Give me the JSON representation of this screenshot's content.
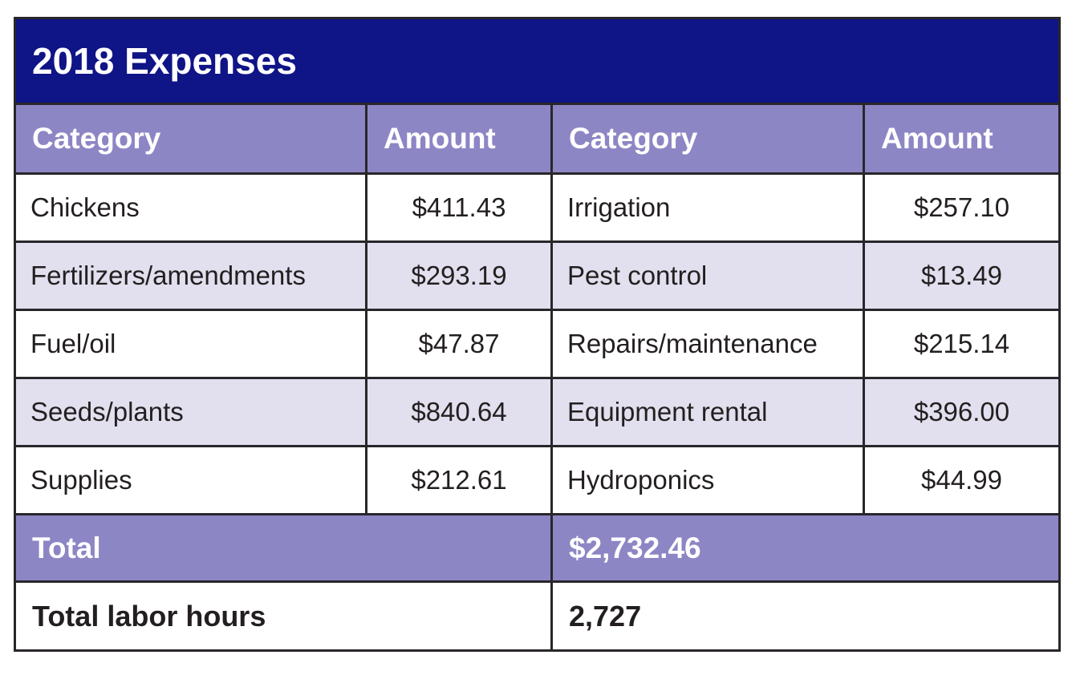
{
  "title": "2018 Expenses",
  "colors": {
    "navy": "#0f1487",
    "purple": "#8d86c5",
    "lavender": "#e2dfee",
    "border": "#29262a",
    "text": "#231f20",
    "white-text": "#ffffff"
  },
  "table": {
    "headers": [
      "Category",
      "Amount",
      "Category",
      "Amount"
    ],
    "rows": [
      {
        "cells": [
          "Chickens",
          "$411.43",
          "Irrigation",
          "$257.10"
        ]
      },
      {
        "cells": [
          "Fertilizers/amendments",
          "$293.19",
          "Pest control",
          "$13.49"
        ]
      },
      {
        "cells": [
          "Fuel/oil",
          "$47.87",
          "Repairs/maintenance",
          "$215.14"
        ]
      },
      {
        "cells": [
          "Seeds/plants",
          "$840.64",
          "Equipment rental",
          "$396.00"
        ]
      },
      {
        "cells": [
          "Supplies",
          "$212.61",
          "Hydroponics",
          "$44.99"
        ]
      }
    ],
    "total": {
      "label": "Total",
      "value": "$2,732.46"
    },
    "labor": {
      "label": "Total labor hours",
      "value": "2,727"
    }
  },
  "chart_data": {
    "type": "table",
    "title": "2018 Expenses",
    "columns": [
      "Category",
      "Amount"
    ],
    "entries": [
      {
        "category": "Chickens",
        "amount": 411.43
      },
      {
        "category": "Fertilizers/amendments",
        "amount": 293.19
      },
      {
        "category": "Fuel/oil",
        "amount": 47.87
      },
      {
        "category": "Seeds/plants",
        "amount": 840.64
      },
      {
        "category": "Supplies",
        "amount": 212.61
      },
      {
        "category": "Irrigation",
        "amount": 257.1
      },
      {
        "category": "Pest control",
        "amount": 13.49
      },
      {
        "category": "Repairs/maintenance",
        "amount": 215.14
      },
      {
        "category": "Equipment rental",
        "amount": 396.0
      },
      {
        "category": "Hydroponics",
        "amount": 44.99
      }
    ],
    "total_expenses": 2732.46,
    "total_labor_hours": 2727
  }
}
